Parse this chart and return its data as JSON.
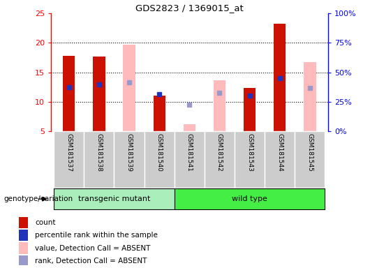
{
  "title": "GDS2823 / 1369015_at",
  "samples": [
    "GSM181537",
    "GSM181538",
    "GSM181539",
    "GSM181540",
    "GSM181541",
    "GSM181542",
    "GSM181543",
    "GSM181544",
    "GSM181545"
  ],
  "count_values": [
    17.8,
    17.7,
    null,
    11.1,
    null,
    null,
    12.4,
    23.3,
    null
  ],
  "rank_values": [
    12.5,
    13.0,
    null,
    11.3,
    null,
    null,
    11.0,
    14.0,
    null
  ],
  "absent_value": [
    null,
    null,
    19.7,
    null,
    6.2,
    13.7,
    null,
    null,
    16.7
  ],
  "absent_rank": [
    null,
    null,
    13.3,
    null,
    9.5,
    11.5,
    null,
    null,
    12.3
  ],
  "ylim": [
    5,
    25
  ],
  "yticks": [
    5,
    10,
    15,
    20,
    25
  ],
  "y2labels": [
    "0%",
    "25%",
    "50%",
    "75%",
    "100%"
  ],
  "transgenic_group": [
    0,
    3
  ],
  "wildtype_group": [
    4,
    8
  ],
  "transgenic_label": "transgenic mutant",
  "wildtype_label": "wild type",
  "group_label": "genotype/variation",
  "bar_color_count": "#cc1100",
  "bar_color_absent": "#ffbbbb",
  "marker_color_rank": "#2233bb",
  "marker_color_absent_rank": "#9999cc",
  "legend_items": [
    "count",
    "percentile rank within the sample",
    "value, Detection Call = ABSENT",
    "rank, Detection Call = ABSENT"
  ],
  "legend_colors": [
    "#cc1100",
    "#2233bb",
    "#ffbbbb",
    "#9999cc"
  ],
  "bar_width": 0.4,
  "background_color": "#ffffff",
  "gray_col_bg": "#cccccc",
  "transgenic_color": "#aaeebb",
  "wildtype_color": "#44ee44",
  "group_border_color": "#000000"
}
